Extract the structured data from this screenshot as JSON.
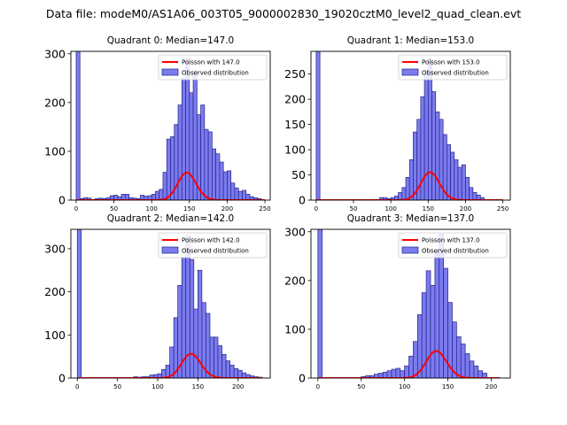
{
  "figure": {
    "suptitle": "Data file: modeM0/AS1A06_003T05_9000002830_19020cztM0_level2_quad_clean.evt"
  },
  "colors": {
    "hist_fill": "#7b7bef",
    "hist_edge": "#23238a",
    "poisson_line": "#ff0000",
    "axes": "#000000"
  },
  "chart_data": [
    {
      "type": "bar",
      "title": "Quadrant 0: Median=147.0",
      "bin_width": 5,
      "xlim": [
        -7,
        257
      ],
      "ylim": [
        0,
        305
      ],
      "x_ticks": [
        0,
        50,
        100,
        150,
        200,
        250
      ],
      "y_ticks": [
        0,
        100,
        200,
        300
      ],
      "median": 147.0,
      "bins": [
        {
          "x": 0,
          "count": 305
        },
        {
          "x": 5,
          "count": 3
        },
        {
          "x": 10,
          "count": 5
        },
        {
          "x": 15,
          "count": 4
        },
        {
          "x": 25,
          "count": 3
        },
        {
          "x": 30,
          "count": 4
        },
        {
          "x": 35,
          "count": 3
        },
        {
          "x": 40,
          "count": 5
        },
        {
          "x": 45,
          "count": 9
        },
        {
          "x": 50,
          "count": 10
        },
        {
          "x": 55,
          "count": 7
        },
        {
          "x": 60,
          "count": 12
        },
        {
          "x": 65,
          "count": 12
        },
        {
          "x": 70,
          "count": 5
        },
        {
          "x": 75,
          "count": 4
        },
        {
          "x": 80,
          "count": 3
        },
        {
          "x": 85,
          "count": 10
        },
        {
          "x": 90,
          "count": 8
        },
        {
          "x": 95,
          "count": 9
        },
        {
          "x": 100,
          "count": 12
        },
        {
          "x": 105,
          "count": 18
        },
        {
          "x": 110,
          "count": 22
        },
        {
          "x": 115,
          "count": 57
        },
        {
          "x": 120,
          "count": 125
        },
        {
          "x": 125,
          "count": 130
        },
        {
          "x": 130,
          "count": 155
        },
        {
          "x": 135,
          "count": 195
        },
        {
          "x": 140,
          "count": 250
        },
        {
          "x": 145,
          "count": 290
        },
        {
          "x": 150,
          "count": 220
        },
        {
          "x": 155,
          "count": 265
        },
        {
          "x": 160,
          "count": 175
        },
        {
          "x": 165,
          "count": 195
        },
        {
          "x": 170,
          "count": 145
        },
        {
          "x": 175,
          "count": 140
        },
        {
          "x": 180,
          "count": 105
        },
        {
          "x": 185,
          "count": 95
        },
        {
          "x": 190,
          "count": 78
        },
        {
          "x": 195,
          "count": 58
        },
        {
          "x": 200,
          "count": 60
        },
        {
          "x": 205,
          "count": 35
        },
        {
          "x": 210,
          "count": 25
        },
        {
          "x": 215,
          "count": 18
        },
        {
          "x": 220,
          "count": 20
        },
        {
          "x": 225,
          "count": 12
        },
        {
          "x": 230,
          "count": 7
        },
        {
          "x": 235,
          "count": 5
        },
        {
          "x": 240,
          "count": 3
        }
      ],
      "poisson": {
        "lambda": 147.0,
        "scale": 1710,
        "x_range": [
          0,
          250
        ]
      },
      "legend": {
        "position": "upper right",
        "entries": [
          "Poisson with 147.0",
          "Observed distribution"
        ]
      }
    },
    {
      "type": "bar",
      "title": "Quadrant 1: Median=153.0",
      "bin_width": 5,
      "xlim": [
        -7,
        260
      ],
      "ylim": [
        0,
        295
      ],
      "x_ticks": [
        0,
        50,
        100,
        150,
        200,
        250
      ],
      "y_ticks": [
        0,
        50,
        100,
        150,
        200,
        250
      ],
      "median": 153.0,
      "bins": [
        {
          "x": 0,
          "count": 295
        },
        {
          "x": 85,
          "count": 5
        },
        {
          "x": 90,
          "count": 5
        },
        {
          "x": 95,
          "count": 3
        },
        {
          "x": 100,
          "count": 5
        },
        {
          "x": 105,
          "count": 8
        },
        {
          "x": 110,
          "count": 15
        },
        {
          "x": 115,
          "count": 25
        },
        {
          "x": 120,
          "count": 45
        },
        {
          "x": 125,
          "count": 80
        },
        {
          "x": 130,
          "count": 135
        },
        {
          "x": 135,
          "count": 160
        },
        {
          "x": 140,
          "count": 205
        },
        {
          "x": 145,
          "count": 255
        },
        {
          "x": 150,
          "count": 280
        },
        {
          "x": 155,
          "count": 215
        },
        {
          "x": 160,
          "count": 175
        },
        {
          "x": 165,
          "count": 160
        },
        {
          "x": 170,
          "count": 130
        },
        {
          "x": 175,
          "count": 110
        },
        {
          "x": 180,
          "count": 95
        },
        {
          "x": 185,
          "count": 80
        },
        {
          "x": 190,
          "count": 65
        },
        {
          "x": 195,
          "count": 70
        },
        {
          "x": 200,
          "count": 45
        },
        {
          "x": 205,
          "count": 25
        },
        {
          "x": 210,
          "count": 15
        },
        {
          "x": 215,
          "count": 10
        },
        {
          "x": 220,
          "count": 5
        }
      ],
      "poisson": {
        "lambda": 153.0,
        "scale": 1715,
        "x_range": [
          0,
          250
        ]
      },
      "legend": {
        "position": "upper right",
        "entries": [
          "Poisson with 153.0",
          "Observed distribution"
        ]
      }
    },
    {
      "type": "bar",
      "title": "Quadrant 2: Median=142.0",
      "bin_width": 5,
      "xlim": [
        -8,
        240
      ],
      "ylim": [
        0,
        345
      ],
      "x_ticks": [
        0,
        50,
        100,
        150,
        200
      ],
      "y_ticks": [
        0,
        100,
        200,
        300
      ],
      "median": 142.0,
      "bins": [
        {
          "x": 0,
          "count": 345
        },
        {
          "x": 70,
          "count": 3
        },
        {
          "x": 75,
          "count": 2
        },
        {
          "x": 80,
          "count": 3
        },
        {
          "x": 85,
          "count": 3
        },
        {
          "x": 90,
          "count": 7
        },
        {
          "x": 95,
          "count": 8
        },
        {
          "x": 100,
          "count": 10
        },
        {
          "x": 105,
          "count": 20
        },
        {
          "x": 110,
          "count": 30
        },
        {
          "x": 115,
          "count": 72
        },
        {
          "x": 120,
          "count": 140
        },
        {
          "x": 125,
          "count": 215
        },
        {
          "x": 130,
          "count": 280
        },
        {
          "x": 135,
          "count": 330
        },
        {
          "x": 140,
          "count": 275
        },
        {
          "x": 145,
          "count": 160
        },
        {
          "x": 150,
          "count": 250
        },
        {
          "x": 155,
          "count": 175
        },
        {
          "x": 160,
          "count": 150
        },
        {
          "x": 165,
          "count": 95
        },
        {
          "x": 170,
          "count": 95
        },
        {
          "x": 175,
          "count": 75
        },
        {
          "x": 180,
          "count": 55
        },
        {
          "x": 185,
          "count": 40
        },
        {
          "x": 190,
          "count": 30
        },
        {
          "x": 195,
          "count": 22
        },
        {
          "x": 200,
          "count": 18
        },
        {
          "x": 205,
          "count": 12
        },
        {
          "x": 210,
          "count": 8
        },
        {
          "x": 215,
          "count": 5
        },
        {
          "x": 220,
          "count": 3
        },
        {
          "x": 225,
          "count": 2
        }
      ],
      "poisson": {
        "lambda": 142.0,
        "scale": 1680,
        "x_range": [
          0,
          230
        ]
      },
      "legend": {
        "position": "upper right",
        "entries": [
          "Poisson with 142.0",
          "Observed distribution"
        ]
      }
    },
    {
      "type": "bar",
      "title": "Quadrant 3: Median=137.0",
      "bin_width": 5,
      "xlim": [
        -8,
        222
      ],
      "ylim": [
        0,
        305
      ],
      "x_ticks": [
        0,
        50,
        100,
        150,
        200
      ],
      "y_ticks": [
        0,
        100,
        200,
        300
      ],
      "median": 137.0,
      "bins": [
        {
          "x": 0,
          "count": 305
        },
        {
          "x": 50,
          "count": 3
        },
        {
          "x": 55,
          "count": 5
        },
        {
          "x": 60,
          "count": 5
        },
        {
          "x": 65,
          "count": 8
        },
        {
          "x": 70,
          "count": 10
        },
        {
          "x": 75,
          "count": 12
        },
        {
          "x": 80,
          "count": 15
        },
        {
          "x": 85,
          "count": 18
        },
        {
          "x": 90,
          "count": 20
        },
        {
          "x": 95,
          "count": 15
        },
        {
          "x": 100,
          "count": 25
        },
        {
          "x": 105,
          "count": 45
        },
        {
          "x": 110,
          "count": 75
        },
        {
          "x": 115,
          "count": 130
        },
        {
          "x": 120,
          "count": 175
        },
        {
          "x": 125,
          "count": 220
        },
        {
          "x": 130,
          "count": 190
        },
        {
          "x": 135,
          "count": 260
        },
        {
          "x": 140,
          "count": 295
        },
        {
          "x": 145,
          "count": 225
        },
        {
          "x": 150,
          "count": 155
        },
        {
          "x": 155,
          "count": 115
        },
        {
          "x": 160,
          "count": 85
        },
        {
          "x": 165,
          "count": 70
        },
        {
          "x": 170,
          "count": 50
        },
        {
          "x": 175,
          "count": 35
        },
        {
          "x": 180,
          "count": 25
        },
        {
          "x": 185,
          "count": 15
        },
        {
          "x": 190,
          "count": 10
        }
      ],
      "poisson": {
        "lambda": 137.0,
        "scale": 1630,
        "x_range": [
          0,
          210
        ]
      },
      "legend": {
        "position": "upper right",
        "entries": [
          "Poisson with 137.0",
          "Observed distribution"
        ]
      }
    }
  ]
}
